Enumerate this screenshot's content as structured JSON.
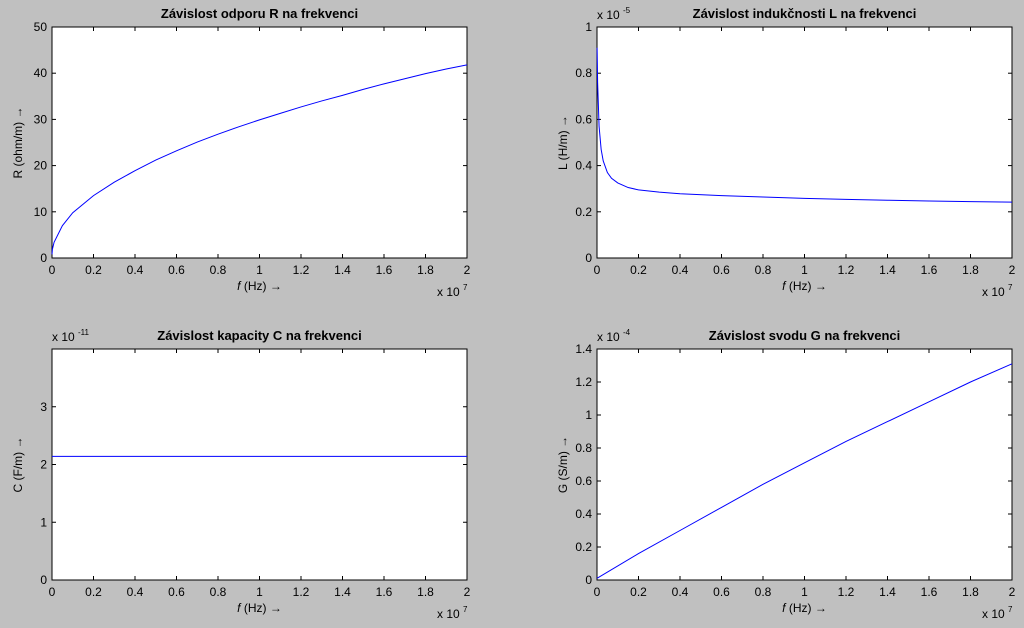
{
  "figure": {
    "background": "#c0c0c0",
    "axes_background": "#ffffff",
    "line_color": "#0000ff",
    "axis_color": "#000000"
  },
  "chart_data": [
    {
      "type": "line",
      "title": "Závislost odporu R na frekvenci",
      "xlabel": "f (Hz) →",
      "ylabel": "R (ohm/m) →",
      "xlim": [
        0,
        20000000.0
      ],
      "ylim": [
        0,
        50
      ],
      "xticks": [
        0,
        2000000.0,
        4000000.0,
        6000000.0,
        8000000.0,
        10000000.0,
        12000000.0,
        14000000.0,
        16000000.0,
        18000000.0,
        20000000.0
      ],
      "xtick_labels": [
        "0",
        "0.2",
        "0.4",
        "0.6",
        "0.8",
        "1",
        "1.2",
        "1.4",
        "1.6",
        "1.8",
        "2"
      ],
      "yticks": [
        0,
        10,
        20,
        30,
        40,
        50
      ],
      "ytick_labels": [
        "0",
        "10",
        "20",
        "30",
        "40",
        "50"
      ],
      "x_exponent": {
        "base": "x 10",
        "power": "7"
      },
      "y_exponent": null,
      "series": [
        {
          "x": [
            0,
            20000.0,
            100000.0,
            500000.0,
            1000000.0,
            2000000.0,
            3000000.0,
            4000000.0,
            5000000.0,
            6000000.0,
            7000000.0,
            8000000.0,
            9000000.0,
            10000000.0,
            11000000.0,
            12000000.0,
            13000000.0,
            14000000.0,
            15000000.0,
            16000000.0,
            17000000.0,
            18000000.0,
            19000000.0,
            20000000.0
          ],
          "y": [
            0.8,
            1.9,
            3.4,
            7.0,
            9.8,
            13.5,
            16.4,
            18.9,
            21.2,
            23.2,
            25.1,
            26.8,
            28.4,
            29.9,
            31.3,
            32.7,
            34.0,
            35.2,
            36.5,
            37.7,
            38.8,
            39.9,
            40.9,
            41.8
          ]
        }
      ]
    },
    {
      "type": "line",
      "title": "Závislost indukčnosti L na frekvenci",
      "xlabel": "f (Hz) →",
      "ylabel": "L (H/m) →",
      "xlim": [
        0,
        20000000.0
      ],
      "ylim": [
        0,
        1e-05
      ],
      "xticks": [
        0,
        2000000.0,
        4000000.0,
        6000000.0,
        8000000.0,
        10000000.0,
        12000000.0,
        14000000.0,
        16000000.0,
        18000000.0,
        20000000.0
      ],
      "xtick_labels": [
        "0",
        "0.2",
        "0.4",
        "0.6",
        "0.8",
        "1",
        "1.2",
        "1.4",
        "1.6",
        "1.8",
        "2"
      ],
      "yticks": [
        0,
        2e-06,
        4e-06,
        6e-06,
        8e-06,
        1e-05
      ],
      "ytick_labels": [
        "0",
        "0.2",
        "0.4",
        "0.6",
        "0.8",
        "1"
      ],
      "x_exponent": {
        "base": "x 10",
        "power": "7"
      },
      "y_exponent": {
        "base": "x 10",
        "power": "-5"
      },
      "series": [
        {
          "x": [
            5000.0,
            30000.0,
            100000.0,
            200000.0,
            300000.0,
            500000.0,
            700000.0,
            1000000.0,
            1500000.0,
            2000000.0,
            3000000.0,
            4000000.0,
            6000000.0,
            8000000.0,
            10000000.0,
            12000000.0,
            14000000.0,
            16000000.0,
            18000000.0,
            20000000.0
          ],
          "y": [
            9.1e-06,
            7.6e-06,
            5.7e-06,
            4.7e-06,
            4.2e-06,
            3.7e-06,
            3.45e-06,
            3.25e-06,
            3.05e-06,
            2.95e-06,
            2.85e-06,
            2.78e-06,
            2.7e-06,
            2.64e-06,
            2.58e-06,
            2.54e-06,
            2.5e-06,
            2.47e-06,
            2.44e-06,
            2.42e-06
          ]
        }
      ]
    },
    {
      "type": "line",
      "title": "Závislost kapacity C na frekvenci",
      "xlabel": "f (Hz) →",
      "ylabel": "C (F/m) →",
      "xlim": [
        0,
        20000000.0
      ],
      "ylim": [
        0,
        4e-11
      ],
      "xticks": [
        0,
        2000000.0,
        4000000.0,
        6000000.0,
        8000000.0,
        10000000.0,
        12000000.0,
        14000000.0,
        16000000.0,
        18000000.0,
        20000000.0
      ],
      "xtick_labels": [
        "0",
        "0.2",
        "0.4",
        "0.6",
        "0.8",
        "1",
        "1.2",
        "1.4",
        "1.6",
        "1.8",
        "2"
      ],
      "yticks": [
        0,
        1e-11,
        2e-11,
        3e-11
      ],
      "ytick_labels": [
        "0",
        "1",
        "2",
        "3"
      ],
      "x_exponent": {
        "base": "x 10",
        "power": "7"
      },
      "y_exponent": {
        "base": "x 10",
        "power": "-11"
      },
      "series": [
        {
          "x": [
            0,
            20000000.0
          ],
          "y": [
            2.14e-11,
            2.14e-11
          ]
        }
      ]
    },
    {
      "type": "line",
      "title": "Závislost svodu G na frekvenci",
      "xlabel": "f (Hz) →",
      "ylabel": "G (S/m) →",
      "xlim": [
        0,
        20000000.0
      ],
      "ylim": [
        0,
        0.00014
      ],
      "xticks": [
        0,
        2000000.0,
        4000000.0,
        6000000.0,
        8000000.0,
        10000000.0,
        12000000.0,
        14000000.0,
        16000000.0,
        18000000.0,
        20000000.0
      ],
      "xtick_labels": [
        "0",
        "0.2",
        "0.4",
        "0.6",
        "0.8",
        "1",
        "1.2",
        "1.4",
        "1.6",
        "1.8",
        "2"
      ],
      "yticks": [
        0,
        2e-05,
        4e-05,
        6e-05,
        8e-05,
        0.0001,
        0.00012,
        0.00014
      ],
      "ytick_labels": [
        "0",
        "0.2",
        "0.4",
        "0.6",
        "0.8",
        "1",
        "1.2",
        "1.4"
      ],
      "x_exponent": {
        "base": "x 10",
        "power": "7"
      },
      "y_exponent": {
        "base": "x 10",
        "power": "-4"
      },
      "series": [
        {
          "x": [
            0,
            2000000.0,
            4000000.0,
            6000000.0,
            8000000.0,
            10000000.0,
            12000000.0,
            14000000.0,
            16000000.0,
            18000000.0,
            20000000.0
          ],
          "y": [
            1e-06,
            1.6e-05,
            3e-05,
            4.4e-05,
            5.8e-05,
            7.1e-05,
            8.4e-05,
            9.6e-05,
            0.000108,
            0.00012,
            0.000131
          ]
        }
      ]
    }
  ]
}
